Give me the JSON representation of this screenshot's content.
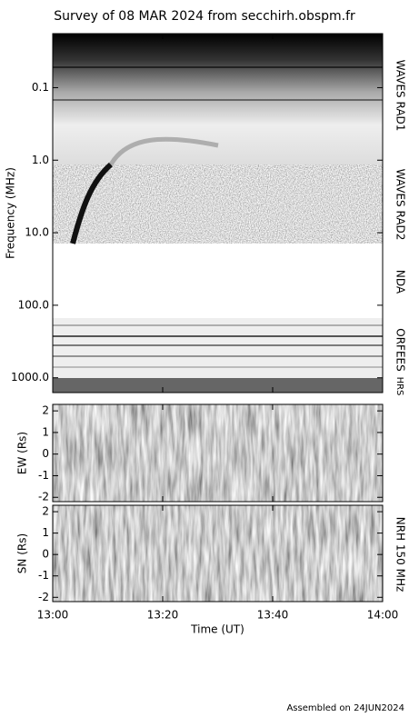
{
  "title": "Survey of 08 MAR 2024 from secchirh.obspm.fr",
  "footer": "Assembled on 24JUN2024",
  "side_label": "NRH 150 MHz",
  "chart_data": [
    {
      "type": "spectrogram",
      "y_label": "Frequency (MHz)",
      "log_y": true,
      "ylim": [
        1600,
        0.018
      ],
      "yticks": [
        {
          "value": 0.1,
          "label": "0.1"
        },
        {
          "value": 1,
          "label": "1.0"
        },
        {
          "value": 10,
          "label": "10.0"
        },
        {
          "value": 100,
          "label": "100.0"
        },
        {
          "value": 1000,
          "label": "1000.0"
        }
      ],
      "band_labels": [
        "WAVES RAD1",
        "WAVES RAD2",
        "NDA",
        "ORFEES",
        "HRS"
      ],
      "xlim": [
        780,
        840
      ]
    },
    {
      "type": "spectrogram",
      "y_label": "EW (Rs)",
      "ylim": [
        -2.2,
        2.3
      ],
      "yticks": [
        -2,
        -1,
        0,
        1,
        2
      ],
      "xlim": [
        780,
        840
      ]
    },
    {
      "type": "spectrogram",
      "y_label": "SN (Rs)",
      "ylim": [
        -2.2,
        2.3
      ],
      "yticks": [
        -2,
        -1,
        0,
        1,
        2
      ],
      "x_label": "Time (UT)",
      "xlim": [
        780,
        840
      ],
      "xticks": [
        {
          "value": 780,
          "label": "13:00"
        },
        {
          "value": 800,
          "label": "13:20"
        },
        {
          "value": 820,
          "label": "13:40"
        },
        {
          "value": 840,
          "label": "14:00"
        }
      ]
    }
  ]
}
